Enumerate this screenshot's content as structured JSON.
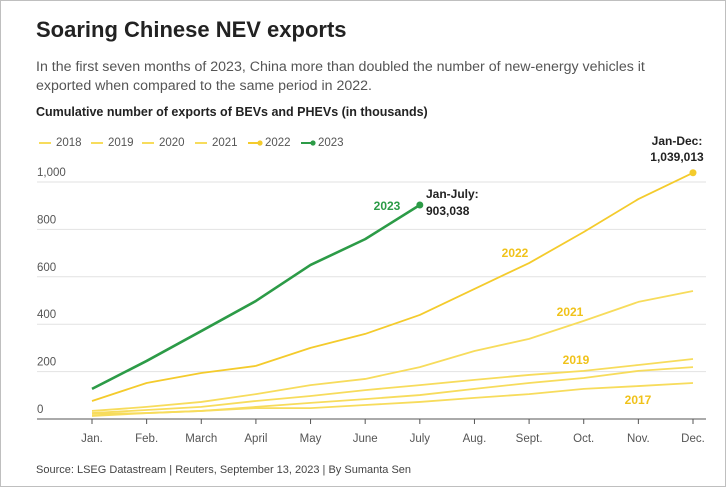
{
  "chart_data": {
    "type": "line",
    "title": "Soaring Chinese NEV exports",
    "subtitle": "In the first seven months of 2023, China more than doubled the number of new-energy vehicles it exported when compared to the same period in 2022.",
    "y_label": "Cumulative number of exports of BEVs and PHEVs (in thousands)",
    "source": "Source: LSEG Datastream | Reuters, September 13, 2023 | By Sumanta Sen",
    "categories": [
      "Jan.",
      "Feb.",
      "March",
      "April",
      "May",
      "June",
      "July",
      "Aug.",
      "Sept.",
      "Oct.",
      "Nov.",
      "Dec."
    ],
    "series": [
      {
        "name": "2018",
        "color": "#f7dc5c",
        "end_marker": false,
        "values": [
          13,
          25,
          34,
          46,
          46,
          59,
          72,
          89,
          105,
          127,
          139,
          152
        ]
      },
      {
        "name": "2019",
        "color": "#f7dc5c",
        "end_marker": false,
        "values": [
          25,
          38,
          51,
          76,
          97,
          122,
          143,
          165,
          186,
          203,
          228,
          253
        ]
      },
      {
        "name": "2020",
        "color": "#f7dc5c",
        "end_marker": false,
        "values": [
          21,
          25,
          34,
          51,
          68,
          84,
          101,
          127,
          152,
          173,
          203,
          219
        ]
      },
      {
        "name": "2021",
        "color": "#f7dc5c",
        "end_marker": false,
        "values": [
          34,
          51,
          72,
          105,
          143,
          169,
          219,
          287,
          338,
          414,
          494,
          540
        ]
      },
      {
        "name": "2022",
        "color": "#f4cb2c",
        "end_marker": true,
        "values": [
          76,
          152,
          194,
          224,
          300,
          359,
          439,
          549,
          658,
          789,
          928,
          1039
        ]
      },
      {
        "name": "2023",
        "color": "#2c9b47",
        "end_marker": true,
        "values": [
          127,
          245,
          371,
          498,
          650,
          759,
          903,
          null,
          null,
          null,
          null,
          null
        ]
      }
    ],
    "ylim": [
      0,
      1050
    ],
    "yticks": [
      0,
      200,
      400,
      600,
      800,
      {
        "value": 1000,
        "label": "1,000"
      }
    ],
    "grid": true,
    "legend": "top-left",
    "annotations": [
      "2023",
      "Jan-July:",
      "903,038",
      "Jan-Dec:",
      "1,039,013",
      "2022",
      "2021",
      "2019",
      "2017"
    ]
  }
}
